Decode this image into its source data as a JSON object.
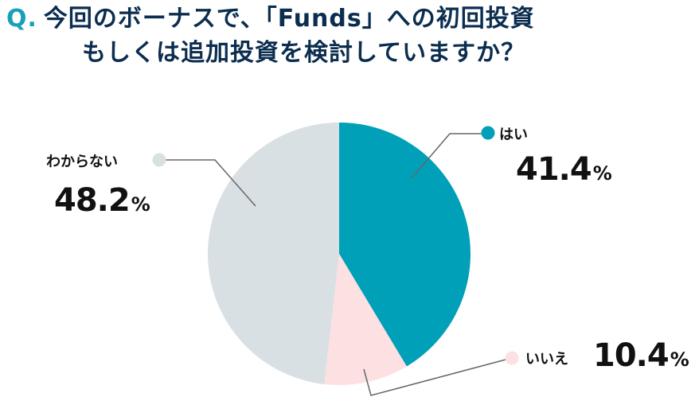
{
  "title": {
    "q_mark": "Q.",
    "line1": "今回のボーナスで、「Funds」への初回投資",
    "line2": "もしくは追加投資を検討していますか？"
  },
  "colors": {
    "accent": "#19a0b9",
    "yes": "#00a0b8",
    "no": "#fde1e2",
    "unknown": "#d9e0e4",
    "leader": "#666666",
    "title": "#0b2d4f"
  },
  "labels": {
    "yes": {
      "name": "はい",
      "value": "41.4",
      "unit": "%"
    },
    "no": {
      "name": "いいえ",
      "value": "10.4",
      "unit": "%"
    },
    "unknown": {
      "name": "わからない",
      "value": "48.2",
      "unit": "%"
    }
  },
  "chart_data": {
    "type": "pie",
    "title": "今回のボーナスで、「Funds」への初回投資もしくは追加投資を検討していますか？",
    "categories": [
      "はい",
      "いいえ",
      "わからない"
    ],
    "values": [
      41.4,
      10.4,
      48.2
    ],
    "unit": "%",
    "colors": [
      "#00a0b8",
      "#fde1e2",
      "#d9e0e4"
    ],
    "start_angle": "12 o'clock, clockwise",
    "legend": "none (callout labels)"
  }
}
